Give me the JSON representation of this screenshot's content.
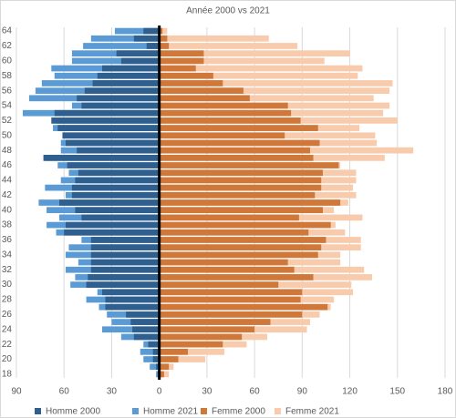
{
  "chart_data": {
    "type": "bar",
    "orientation": "horizontal",
    "title": "Année 2000 vs 2021",
    "categories": [
      "18",
      null,
      "20",
      null,
      "22",
      null,
      "24",
      null,
      "26",
      null,
      "28",
      null,
      "30",
      null,
      "32",
      null,
      "34",
      null,
      "36",
      null,
      "38",
      null,
      "40",
      null,
      "42",
      null,
      "44",
      null,
      "46",
      null,
      "48",
      null,
      "50",
      null,
      "52",
      null,
      "54",
      null,
      "56",
      null,
      "58",
      null,
      "60",
      null,
      "62",
      null,
      "64"
    ],
    "series": [
      {
        "name": "Homme 2000",
        "color": "#2f5f8f",
        "values": [
          -1,
          -2,
          -4,
          -4,
          -7,
          -16,
          -17,
          -18,
          -21,
          -34,
          -34,
          -36,
          -46,
          -45,
          -43,
          -43,
          -43,
          -43,
          -43,
          -60,
          -59,
          -49,
          -53,
          -63,
          -55,
          -55,
          -53,
          -51,
          -58,
          -73,
          -52,
          -59,
          -61,
          -64,
          -68,
          -66,
          -49,
          -52,
          -47,
          -42,
          -39,
          -36,
          -24,
          -27,
          -8,
          -16,
          -10
        ]
      },
      {
        "name": "Homme 2021",
        "color": "#5b9bd5",
        "values": [
          -2,
          -6,
          -10,
          -12,
          -10,
          -24,
          -36,
          -30,
          -33,
          -38,
          -46,
          -39,
          -56,
          -53,
          -59,
          -51,
          -59,
          -57,
          -49,
          -65,
          -71,
          -63,
          -71,
          -76,
          -59,
          -72,
          -62,
          -57,
          -64,
          -72,
          -62,
          -62,
          -61,
          -67,
          -65,
          -86,
          -55,
          -82,
          -78,
          -74,
          -66,
          -68,
          -55,
          -55,
          -48,
          -43,
          -28
        ]
      },
      {
        "name": "Femme 2000",
        "color": "#d0783a",
        "values": [
          3,
          6,
          12,
          18,
          40,
          52,
          60,
          70,
          90,
          106,
          89,
          90,
          75,
          97,
          85,
          81,
          100,
          102,
          105,
          94,
          108,
          88,
          103,
          114,
          98,
          102,
          102,
          103,
          113,
          97,
          95,
          101,
          79,
          100,
          89,
          83,
          81,
          57,
          53,
          40,
          34,
          23,
          28,
          28,
          6,
          5,
          2
        ]
      },
      {
        "name": "Femme 2021",
        "color": "#f8cbad",
        "values": [
          6,
          9,
          29,
          41,
          55,
          68,
          93,
          95,
          101,
          108,
          110,
          122,
          121,
          134,
          129,
          114,
          114,
          127,
          127,
          117,
          111,
          128,
          110,
          119,
          124,
          122,
          124,
          124,
          114,
          142,
          160,
          137,
          136,
          126,
          150,
          141,
          145,
          135,
          145,
          147,
          125,
          128,
          104,
          120,
          87,
          69,
          5
        ]
      }
    ],
    "xlim": [
      -90,
      180
    ],
    "xticks": [
      {
        "value": -90,
        "label": "90"
      },
      {
        "value": -60,
        "label": "60"
      },
      {
        "value": -30,
        "label": "30"
      },
      0,
      30,
      60,
      90,
      120,
      150,
      180
    ],
    "grid": true,
    "legend": "bottom"
  }
}
